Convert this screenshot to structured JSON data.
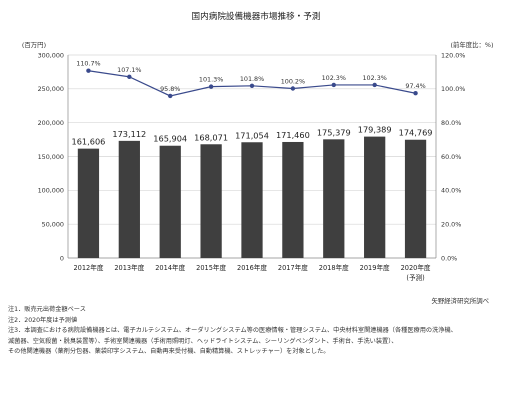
{
  "chart_data": {
    "type": "bar",
    "title": "国内病院設備機器市場推移・予測",
    "left_axis_unit": "(百万円)",
    "right_axis_unit": "(前年度比：%)",
    "categories": [
      "2012年度",
      "2013年度",
      "2014年度",
      "2015年度",
      "2016年度",
      "2017年度",
      "2018年度",
      "2019年度",
      "2020年度"
    ],
    "category_sublabels": [
      "",
      "",
      "",
      "",
      "",
      "",
      "",
      "",
      "(予測)"
    ],
    "series": [
      {
        "name": "",
        "type": "bar",
        "axis": "left",
        "values": [
          161606,
          173112,
          165904,
          168071,
          171054,
          171460,
          175379,
          179389,
          174769
        ],
        "labels": [
          "161,606",
          "173,112",
          "165,904",
          "168,071",
          "171,054",
          "171,460",
          "175,379",
          "179,389",
          "174,769"
        ]
      },
      {
        "name": "",
        "type": "line",
        "axis": "right",
        "values": [
          110.7,
          107.1,
          95.8,
          101.3,
          101.8,
          100.2,
          102.3,
          102.3,
          97.4
        ],
        "labels": [
          "110.7%",
          "107.1%",
          "95.8%",
          "101.3%",
          "101.8%",
          "100.2%",
          "102.3%",
          "102.3%",
          "97.4%"
        ]
      }
    ],
    "left_axis": {
      "min": 0,
      "max": 300000,
      "ticks": [
        0,
        50000,
        100000,
        150000,
        200000,
        250000,
        300000
      ],
      "tick_labels": [
        "0",
        "50,000",
        "100,000",
        "150,000",
        "200,000",
        "250,000",
        "300,000"
      ]
    },
    "right_axis": {
      "min": 0,
      "max": 120,
      "ticks": [
        0,
        20,
        40,
        60,
        80,
        100,
        120
      ],
      "tick_labels": [
        "0.0%",
        "20.0%",
        "40.0%",
        "60.0%",
        "80.0%",
        "100.0%",
        "120.0%"
      ]
    },
    "grid": true,
    "colors": {
      "bar": "#3f3f3f",
      "line": "#3a4a8c",
      "grid": "#d6d6d6"
    }
  },
  "source": "矢野経済研究所調べ",
  "notes": [
    "注1．販売元出荷金額ベース",
    "注2．2020年度は予測値",
    "注3．本調査における病院設備機器とは、電子カルテシステム、オーダリングシステム等の医療情報・管理システム、中央材料室関連機器（各種医療用の洗浄機、",
    "滅菌器、空気殺菌・脱臭装置等）、手術室関連機器（手術用照明灯、ヘッドライトシステム、シーリングペンダント、手術台、手洗い装置）、",
    "その他関連機器（薬剤分包器、薬袋印字システム、自動再来受付機、自動精算機、ストレッチャー）を対象とした。"
  ]
}
